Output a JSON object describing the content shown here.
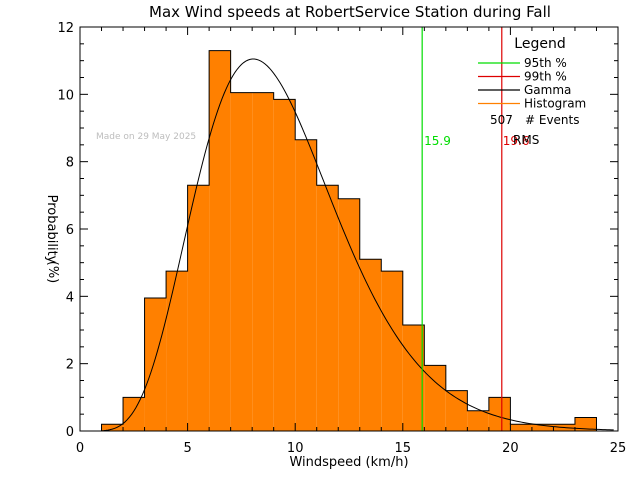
{
  "chart_data": {
    "type": "bar",
    "title": "Max Wind speeds at RobertService Station during Fall",
    "xlabel": "Windspeed (km/h)",
    "ylabel_top": "Probability",
    "ylabel_bottom": "(%)",
    "xlim": [
      0,
      25
    ],
    "ylim": [
      0,
      12
    ],
    "x_ticks": [
      0,
      5,
      10,
      15,
      20,
      25
    ],
    "y_ticks": [
      0,
      2,
      4,
      6,
      8,
      10,
      12
    ],
    "grid": false,
    "bin_edges": [
      1,
      2,
      3,
      4,
      5,
      6,
      7,
      8,
      9,
      10,
      11,
      12,
      13,
      14,
      15,
      16,
      17,
      18,
      19,
      20,
      21,
      22,
      23,
      24
    ],
    "histogram_values": [
      0.2,
      1.0,
      3.95,
      4.75,
      7.3,
      11.3,
      10.05,
      10.05,
      9.85,
      8.65,
      7.3,
      6.9,
      5.1,
      4.75,
      3.15,
      1.95,
      1.2,
      0.6,
      1.0,
      0.2,
      0.2,
      0.2,
      0.4
    ],
    "gamma_curve": {
      "shape": 7.1,
      "scale": 1.32,
      "peak_value": 11.05,
      "x_range": [
        1.0,
        24.8
      ]
    },
    "percentile_95": {
      "value": 15.9,
      "label": "15.9",
      "color": "#00dd00"
    },
    "percentile_99": {
      "value": 19.6,
      "label": "19.6",
      "color": "#dd0000"
    },
    "legend": {
      "title": "Legend",
      "position": "top-right",
      "entries": [
        {
          "label": "95th %",
          "color": "#00dd00"
        },
        {
          "label": "99th %",
          "color": "#dd0000"
        },
        {
          "label": "Gamma",
          "color": "#000000"
        },
        {
          "label": "Histogram",
          "color": "#ff8000"
        }
      ],
      "events_count": "507",
      "events_label": "# Events",
      "rms_label": "RMS"
    },
    "stamp": "Made on 29 May 2025",
    "colors": {
      "histogram_fill": "#ff8000",
      "histogram_edge": "#000000",
      "axis": "#000000"
    }
  }
}
